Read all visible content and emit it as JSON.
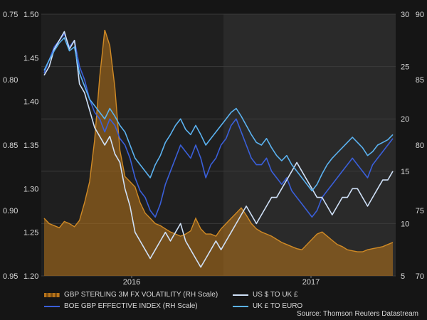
{
  "chart_data": {
    "type": "line",
    "xlabel_ticks": [
      "2016",
      "2017"
    ],
    "left_outer_axis": {
      "ticks": [
        "0.75",
        "0.80",
        "0.85",
        "0.90",
        "0.95"
      ],
      "range": [
        0.75,
        0.95
      ],
      "inverted": true
    },
    "left_inner_axis": {
      "ticks": [
        "1.50",
        "1.45",
        "1.40",
        "1.35",
        "1.30",
        "1.25",
        "1.20"
      ],
      "range": [
        1.2,
        1.5
      ]
    },
    "right_inner_axis": {
      "ticks": [
        "30",
        "25",
        "20",
        "15",
        "10",
        "5"
      ],
      "range": [
        5,
        30
      ]
    },
    "right_outer_axis": {
      "ticks": [
        "90",
        "85",
        "80",
        "75",
        "70"
      ],
      "range": [
        70,
        90
      ]
    },
    "series": [
      {
        "name": "GBP STERLING 3M FX VOLATILITY (RH Scale)",
        "color": "#b8741a",
        "type": "area",
        "axis": "right_inner",
        "values": [
          10.5,
          10.0,
          9.8,
          9.6,
          10.2,
          10.0,
          9.7,
          10.3,
          12.0,
          14.0,
          18.0,
          24.0,
          28.5,
          27.0,
          23.0,
          17.0,
          14.5,
          14.0,
          13.5,
          12.0,
          11.0,
          10.5,
          10.0,
          9.8,
          9.5,
          9.2,
          9.0,
          8.8,
          9.0,
          9.3,
          10.5,
          9.5,
          9.0,
          9.0,
          8.8,
          9.5,
          10.0,
          10.5,
          11.0,
          11.5,
          10.8,
          10.0,
          9.5,
          9.2,
          9.0,
          8.8,
          8.5,
          8.2,
          8.0,
          7.8,
          7.6,
          7.5,
          8.0,
          8.5,
          9.0,
          9.2,
          8.8,
          8.4,
          8.0,
          7.8,
          7.5,
          7.4,
          7.3,
          7.3,
          7.5,
          7.6,
          7.7,
          7.8,
          8.0,
          8.2
        ]
      },
      {
        "name": "BOE GBP EFFECTIVE INDEX (RH Scale)",
        "color": "#3a5fd9",
        "type": "line",
        "axis": "right_outer",
        "values": [
          85.5,
          86.5,
          87.5,
          88.0,
          88.5,
          87.5,
          88.0,
          86.0,
          85.0,
          83.5,
          82.5,
          82.0,
          81.0,
          82.0,
          81.5,
          80.5,
          80.0,
          79.0,
          77.5,
          76.5,
          76.0,
          75.0,
          74.5,
          75.5,
          77.0,
          78.0,
          79.0,
          80.0,
          79.5,
          79.0,
          80.0,
          79.0,
          77.5,
          78.5,
          79.0,
          80.0,
          80.5,
          81.5,
          82.0,
          81.0,
          80.0,
          79.0,
          78.5,
          78.5,
          79.0,
          78.0,
          77.5,
          77.0,
          77.5,
          76.5,
          76.0,
          75.5,
          75.0,
          74.5,
          75.0,
          76.0,
          76.5,
          77.0,
          77.5,
          78.0,
          78.5,
          79.0,
          78.5,
          78.0,
          77.5,
          78.5,
          79.0,
          79.5,
          80.0,
          80.5
        ]
      },
      {
        "name": "US $ TO UK £",
        "color": "#cfe0f7",
        "type": "line",
        "axis": "left_inner",
        "values": [
          1.43,
          1.44,
          1.46,
          1.47,
          1.48,
          1.46,
          1.47,
          1.42,
          1.41,
          1.39,
          1.37,
          1.36,
          1.35,
          1.36,
          1.34,
          1.33,
          1.3,
          1.28,
          1.25,
          1.24,
          1.23,
          1.22,
          1.23,
          1.24,
          1.25,
          1.24,
          1.25,
          1.26,
          1.24,
          1.23,
          1.22,
          1.21,
          1.22,
          1.23,
          1.24,
          1.23,
          1.24,
          1.25,
          1.26,
          1.27,
          1.28,
          1.27,
          1.26,
          1.27,
          1.28,
          1.29,
          1.29,
          1.3,
          1.31,
          1.32,
          1.33,
          1.32,
          1.31,
          1.3,
          1.29,
          1.29,
          1.28,
          1.27,
          1.28,
          1.29,
          1.29,
          1.3,
          1.3,
          1.29,
          1.28,
          1.29,
          1.3,
          1.31,
          1.31,
          1.32
        ]
      },
      {
        "name": "UK £ TO EURO",
        "color": "#5bb2f0",
        "type": "line",
        "axis": "left_outer",
        "values": [
          0.793,
          0.785,
          0.778,
          0.772,
          0.768,
          0.778,
          0.775,
          0.795,
          0.805,
          0.815,
          0.82,
          0.825,
          0.83,
          0.822,
          0.828,
          0.835,
          0.84,
          0.85,
          0.86,
          0.865,
          0.87,
          0.875,
          0.865,
          0.858,
          0.848,
          0.842,
          0.835,
          0.83,
          0.838,
          0.842,
          0.835,
          0.842,
          0.85,
          0.845,
          0.84,
          0.835,
          0.83,
          0.825,
          0.822,
          0.828,
          0.835,
          0.842,
          0.848,
          0.85,
          0.845,
          0.852,
          0.858,
          0.862,
          0.858,
          0.865,
          0.87,
          0.875,
          0.88,
          0.885,
          0.88,
          0.872,
          0.865,
          0.86,
          0.856,
          0.852,
          0.848,
          0.844,
          0.848,
          0.852,
          0.858,
          0.855,
          0.85,
          0.848,
          0.846,
          0.842
        ]
      }
    ]
  },
  "legend": {
    "volatility": "GBP STERLING 3M FX VOLATILITY (RH Scale)",
    "boe": "BOE GBP EFFECTIVE INDEX (RH Scale)",
    "usd": "US $ TO UK £",
    "euro": "UK £ TO EURO"
  },
  "source": "Source: Thomson Reuters Datastream"
}
